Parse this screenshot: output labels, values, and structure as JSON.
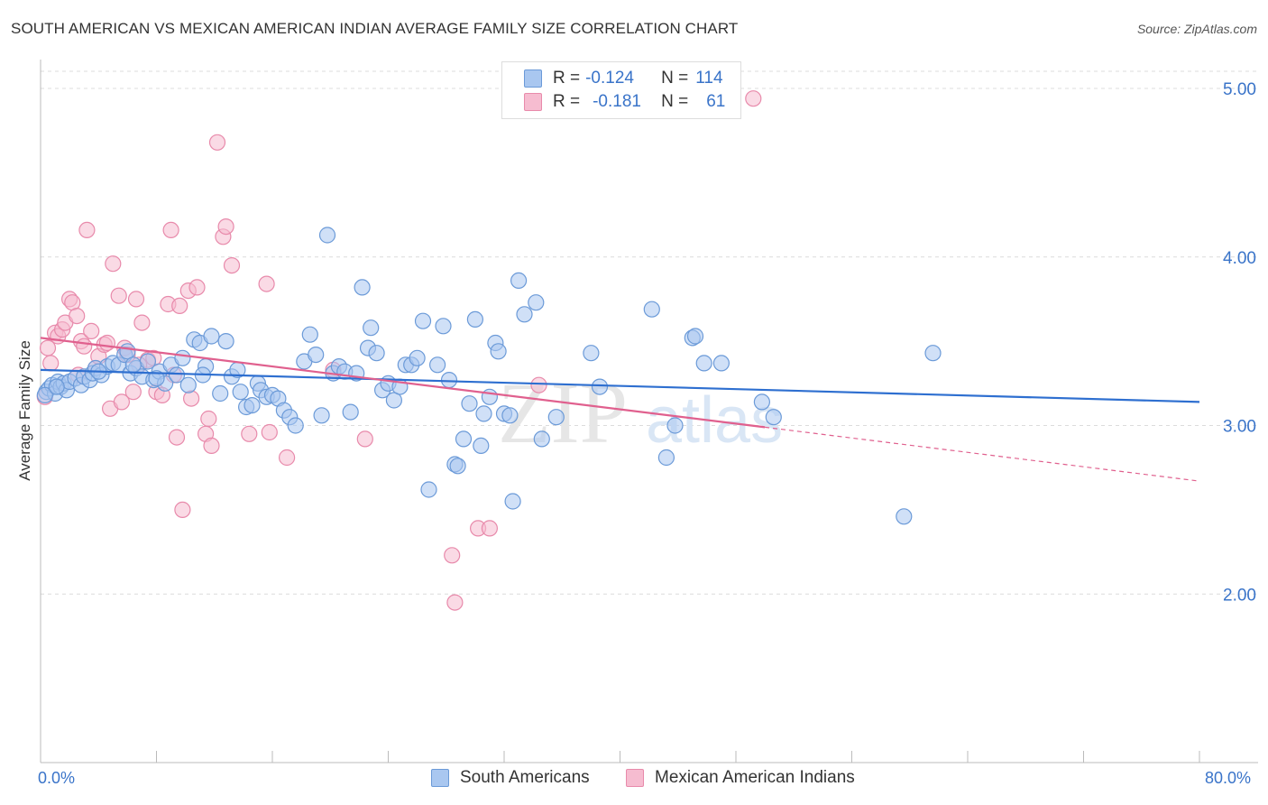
{
  "header": {
    "title": "SOUTH AMERICAN VS MEXICAN AMERICAN INDIAN AVERAGE FAMILY SIZE CORRELATION CHART",
    "source": "Source: ZipAtlas.com"
  },
  "legend": {
    "rows": [
      {
        "r_label": "R =",
        "r_value": "-0.124",
        "n_label": "N =",
        "n_value": "114"
      },
      {
        "r_label": "R =",
        "r_value": "-0.181",
        "n_label": "N =",
        "n_value": "61"
      }
    ]
  },
  "bottom_legend": [
    "South Americans",
    "Mexican American Indians"
  ],
  "watermark": {
    "zip": "ZIP",
    "atlas": "atlas"
  },
  "colors": {
    "blue_fill": "#a9c7f0",
    "blue_stroke": "#6b9ad8",
    "blue_line": "#2e6fd0",
    "pink_fill": "#f6bcd0",
    "pink_stroke": "#e88aab",
    "pink_line": "#e0608e",
    "axis_text": "#3a74c9",
    "grid": "#dcdcdc"
  },
  "chart_data": {
    "type": "scatter",
    "title": "SOUTH AMERICAN VS MEXICAN AMERICAN INDIAN AVERAGE FAMILY SIZE CORRELATION CHART",
    "xlabel": "",
    "ylabel": "Average Family Size",
    "xlim": [
      0,
      80
    ],
    "ylim": [
      1.0,
      5.15
    ],
    "x_tick_labels": [
      "0.0%",
      "80.0%"
    ],
    "y_ticks": [
      2.0,
      3.0,
      4.0,
      5.0
    ],
    "y_tick_labels": [
      "2.00",
      "3.00",
      "4.00",
      "5.00"
    ],
    "grid": true,
    "series": [
      {
        "name": "South Americans",
        "r": -0.124,
        "n": 114,
        "trend": {
          "x": [
            0,
            80
          ],
          "y": [
            3.33,
            3.14
          ]
        },
        "points": [
          [
            0.4,
            3.2
          ],
          [
            0.6,
            3.22
          ],
          [
            0.8,
            3.24
          ],
          [
            1.0,
            3.19
          ],
          [
            1.2,
            3.26
          ],
          [
            1.4,
            3.23
          ],
          [
            1.6,
            3.25
          ],
          [
            1.8,
            3.21
          ],
          [
            2.0,
            3.26
          ],
          [
            2.4,
            3.28
          ],
          [
            2.8,
            3.24
          ],
          [
            3.0,
            3.29
          ],
          [
            3.4,
            3.27
          ],
          [
            3.6,
            3.31
          ],
          [
            3.8,
            3.34
          ],
          [
            4.2,
            3.3
          ],
          [
            4.6,
            3.35
          ],
          [
            5.0,
            3.37
          ],
          [
            5.4,
            3.36
          ],
          [
            5.8,
            3.42
          ],
          [
            6.0,
            3.44
          ],
          [
            6.2,
            3.31
          ],
          [
            6.6,
            3.34
          ],
          [
            7.0,
            3.29
          ],
          [
            7.4,
            3.38
          ],
          [
            7.8,
            3.27
          ],
          [
            8.2,
            3.32
          ],
          [
            8.6,
            3.25
          ],
          [
            9.0,
            3.36
          ],
          [
            9.4,
            3.3
          ],
          [
            9.8,
            3.4
          ],
          [
            10.2,
            3.24
          ],
          [
            10.6,
            3.51
          ],
          [
            11.0,
            3.49
          ],
          [
            11.4,
            3.35
          ],
          [
            11.8,
            3.53
          ],
          [
            12.4,
            3.19
          ],
          [
            12.8,
            3.5
          ],
          [
            13.2,
            3.29
          ],
          [
            13.6,
            3.33
          ],
          [
            14.2,
            3.11
          ],
          [
            14.6,
            3.12
          ],
          [
            15.0,
            3.25
          ],
          [
            15.2,
            3.21
          ],
          [
            15.6,
            3.17
          ],
          [
            16.0,
            3.18
          ],
          [
            16.4,
            3.16
          ],
          [
            16.8,
            3.09
          ],
          [
            17.2,
            3.05
          ],
          [
            17.6,
            3.0
          ],
          [
            18.2,
            3.38
          ],
          [
            18.6,
            3.54
          ],
          [
            19.0,
            3.42
          ],
          [
            19.4,
            3.06
          ],
          [
            19.8,
            4.13
          ],
          [
            20.2,
            3.31
          ],
          [
            20.6,
            3.35
          ],
          [
            21.0,
            3.32
          ],
          [
            21.4,
            3.08
          ],
          [
            21.8,
            3.31
          ],
          [
            22.2,
            3.82
          ],
          [
            22.6,
            3.46
          ],
          [
            22.8,
            3.58
          ],
          [
            23.2,
            3.43
          ],
          [
            23.6,
            3.21
          ],
          [
            24.0,
            3.25
          ],
          [
            24.4,
            3.15
          ],
          [
            24.8,
            3.23
          ],
          [
            25.2,
            3.36
          ],
          [
            25.6,
            3.36
          ],
          [
            26.0,
            3.4
          ],
          [
            26.4,
            3.62
          ],
          [
            26.8,
            2.62
          ],
          [
            27.4,
            3.36
          ],
          [
            27.8,
            3.59
          ],
          [
            28.2,
            3.27
          ],
          [
            28.6,
            2.77
          ],
          [
            28.8,
            2.76
          ],
          [
            29.2,
            2.92
          ],
          [
            29.6,
            3.13
          ],
          [
            30.0,
            3.63
          ],
          [
            30.4,
            2.88
          ],
          [
            30.6,
            3.07
          ],
          [
            31.0,
            3.17
          ],
          [
            31.4,
            3.49
          ],
          [
            31.6,
            3.44
          ],
          [
            32.0,
            3.07
          ],
          [
            32.4,
            3.06
          ],
          [
            32.6,
            2.55
          ],
          [
            33.0,
            3.86
          ],
          [
            33.4,
            3.66
          ],
          [
            34.2,
            3.73
          ],
          [
            34.6,
            2.92
          ],
          [
            35.6,
            3.05
          ],
          [
            38.0,
            3.43
          ],
          [
            38.6,
            3.23
          ],
          [
            42.2,
            3.69
          ],
          [
            43.2,
            2.81
          ],
          [
            43.8,
            3.0
          ],
          [
            45.0,
            3.52
          ],
          [
            45.2,
            3.53
          ],
          [
            45.8,
            3.37
          ],
          [
            47.0,
            3.37
          ],
          [
            49.8,
            3.14
          ],
          [
            50.6,
            3.05
          ],
          [
            59.6,
            2.46
          ],
          [
            61.6,
            3.43
          ],
          [
            0.3,
            3.18
          ],
          [
            1.1,
            3.23
          ],
          [
            4.0,
            3.32
          ],
          [
            6.4,
            3.36
          ],
          [
            8.0,
            3.28
          ],
          [
            11.2,
            3.3
          ],
          [
            13.8,
            3.2
          ]
        ]
      },
      {
        "name": "Mexican American Indians",
        "r": -0.181,
        "n": 61,
        "trend": {
          "x": [
            0,
            50
          ],
          "y": [
            3.52,
            2.99
          ]
        },
        "trend_extension": {
          "x": [
            50,
            80
          ],
          "y": [
            2.99,
            2.67
          ]
        },
        "points": [
          [
            0.3,
            3.17
          ],
          [
            0.5,
            3.46
          ],
          [
            0.7,
            3.37
          ],
          [
            1.0,
            3.55
          ],
          [
            1.2,
            3.53
          ],
          [
            1.5,
            3.57
          ],
          [
            1.7,
            3.61
          ],
          [
            2.0,
            3.75
          ],
          [
            2.2,
            3.73
          ],
          [
            2.5,
            3.65
          ],
          [
            2.8,
            3.5
          ],
          [
            3.0,
            3.47
          ],
          [
            3.2,
            4.16
          ],
          [
            3.5,
            3.56
          ],
          [
            3.8,
            3.34
          ],
          [
            4.0,
            3.41
          ],
          [
            4.4,
            3.48
          ],
          [
            4.6,
            3.49
          ],
          [
            4.8,
            3.1
          ],
          [
            5.0,
            3.96
          ],
          [
            5.4,
            3.77
          ],
          [
            5.6,
            3.14
          ],
          [
            5.8,
            3.46
          ],
          [
            6.0,
            3.42
          ],
          [
            6.4,
            3.2
          ],
          [
            6.6,
            3.75
          ],
          [
            7.0,
            3.61
          ],
          [
            7.4,
            3.39
          ],
          [
            7.8,
            3.4
          ],
          [
            8.0,
            3.2
          ],
          [
            8.4,
            3.18
          ],
          [
            8.8,
            3.72
          ],
          [
            9.0,
            4.16
          ],
          [
            9.4,
            2.93
          ],
          [
            9.6,
            3.71
          ],
          [
            9.8,
            2.5
          ],
          [
            10.2,
            3.8
          ],
          [
            10.4,
            3.16
          ],
          [
            10.8,
            3.82
          ],
          [
            11.4,
            2.95
          ],
          [
            11.6,
            3.04
          ],
          [
            11.8,
            2.88
          ],
          [
            12.2,
            4.68
          ],
          [
            12.6,
            4.12
          ],
          [
            12.8,
            4.18
          ],
          [
            13.2,
            3.95
          ],
          [
            14.4,
            2.95
          ],
          [
            15.6,
            3.84
          ],
          [
            15.8,
            2.96
          ],
          [
            17.0,
            2.81
          ],
          [
            20.2,
            3.33
          ],
          [
            22.4,
            2.92
          ],
          [
            28.4,
            2.23
          ],
          [
            28.6,
            1.95
          ],
          [
            30.2,
            2.39
          ],
          [
            31.0,
            2.39
          ],
          [
            34.4,
            3.24
          ],
          [
            49.2,
            4.94
          ],
          [
            2.6,
            3.3
          ],
          [
            6.8,
            3.36
          ],
          [
            9.2,
            3.3
          ]
        ]
      }
    ]
  }
}
